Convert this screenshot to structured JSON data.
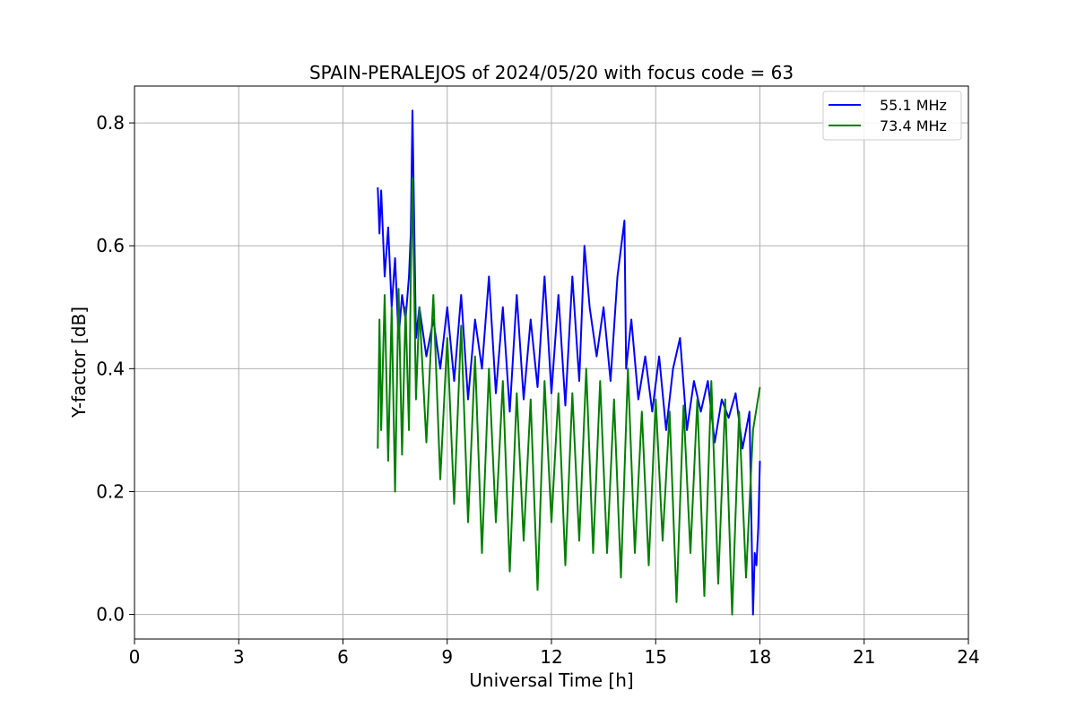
{
  "chart_data": {
    "type": "line",
    "title": "SPAIN-PERALEJOS of 2024/05/20 with focus code = 63",
    "xlabel": "Universal Time [h]",
    "ylabel": "Y-factor [dB]",
    "xlim": [
      0,
      24
    ],
    "ylim": [
      -0.04,
      0.86
    ],
    "xticks": [
      0,
      3,
      6,
      9,
      12,
      15,
      18,
      21,
      24
    ],
    "xtick_labels": [
      "0",
      "3",
      "6",
      "9",
      "12",
      "15",
      "18",
      "21",
      "24"
    ],
    "yticks": [
      0.0,
      0.2,
      0.4,
      0.6,
      0.8
    ],
    "ytick_labels": [
      "0.0",
      "0.2",
      "0.4",
      "0.6",
      "0.8"
    ],
    "grid": true,
    "legend_position": "top-right",
    "series": [
      {
        "name": "55.1 MHz",
        "color": "#0000ff",
        "x": [
          7.0,
          7.05,
          7.1,
          7.2,
          7.3,
          7.4,
          7.5,
          7.6,
          7.7,
          7.8,
          7.9,
          7.95,
          8.0,
          8.1,
          8.2,
          8.4,
          8.6,
          8.8,
          9.0,
          9.2,
          9.4,
          9.6,
          9.8,
          10.0,
          10.2,
          10.4,
          10.6,
          10.8,
          11.0,
          11.2,
          11.4,
          11.6,
          11.8,
          12.0,
          12.2,
          12.4,
          12.6,
          12.8,
          12.95,
          13.1,
          13.3,
          13.5,
          13.7,
          13.9,
          14.1,
          14.15,
          14.3,
          14.5,
          14.7,
          14.9,
          15.1,
          15.3,
          15.5,
          15.7,
          15.9,
          16.1,
          16.3,
          16.5,
          16.7,
          16.9,
          17.1,
          17.3,
          17.5,
          17.7,
          17.8,
          17.85,
          17.9,
          17.95,
          18.0
        ],
        "y": [
          0.695,
          0.62,
          0.69,
          0.55,
          0.63,
          0.5,
          0.58,
          0.45,
          0.52,
          0.48,
          0.55,
          0.62,
          0.82,
          0.45,
          0.5,
          0.42,
          0.48,
          0.4,
          0.5,
          0.38,
          0.52,
          0.35,
          0.48,
          0.4,
          0.55,
          0.36,
          0.5,
          0.33,
          0.52,
          0.35,
          0.48,
          0.37,
          0.55,
          0.36,
          0.52,
          0.34,
          0.55,
          0.38,
          0.6,
          0.5,
          0.42,
          0.5,
          0.38,
          0.55,
          0.641,
          0.4,
          0.48,
          0.35,
          0.42,
          0.33,
          0.42,
          0.3,
          0.4,
          0.45,
          0.3,
          0.38,
          0.33,
          0.38,
          0.28,
          0.35,
          0.32,
          0.36,
          0.27,
          0.33,
          0.0,
          0.1,
          0.08,
          0.14,
          0.25
        ]
      },
      {
        "name": "73.4 MHz",
        "color": "#008000",
        "x": [
          7.0,
          7.05,
          7.1,
          7.2,
          7.3,
          7.4,
          7.5,
          7.6,
          7.7,
          7.8,
          7.9,
          7.95,
          8.0,
          8.1,
          8.2,
          8.4,
          8.6,
          8.8,
          9.0,
          9.2,
          9.4,
          9.6,
          9.8,
          10.0,
          10.2,
          10.4,
          10.6,
          10.8,
          11.0,
          11.2,
          11.4,
          11.6,
          11.8,
          12.0,
          12.2,
          12.4,
          12.6,
          12.8,
          13.0,
          13.2,
          13.4,
          13.6,
          13.8,
          14.0,
          14.2,
          14.4,
          14.6,
          14.8,
          15.0,
          15.2,
          15.4,
          15.6,
          15.8,
          16.0,
          16.2,
          16.4,
          16.6,
          16.8,
          17.0,
          17.2,
          17.4,
          17.6,
          17.8,
          18.0
        ],
        "y": [
          0.27,
          0.48,
          0.3,
          0.52,
          0.25,
          0.5,
          0.2,
          0.53,
          0.26,
          0.5,
          0.3,
          0.55,
          0.71,
          0.35,
          0.5,
          0.28,
          0.52,
          0.22,
          0.45,
          0.18,
          0.47,
          0.15,
          0.42,
          0.1,
          0.4,
          0.15,
          0.38,
          0.07,
          0.36,
          0.12,
          0.35,
          0.04,
          0.38,
          0.15,
          0.36,
          0.08,
          0.36,
          0.12,
          0.4,
          0.1,
          0.38,
          0.1,
          0.35,
          0.06,
          0.4,
          0.1,
          0.33,
          0.08,
          0.35,
          0.12,
          0.33,
          0.02,
          0.34,
          0.1,
          0.35,
          0.03,
          0.38,
          0.05,
          0.35,
          0.0,
          0.33,
          0.06,
          0.3,
          0.37
        ]
      }
    ]
  }
}
